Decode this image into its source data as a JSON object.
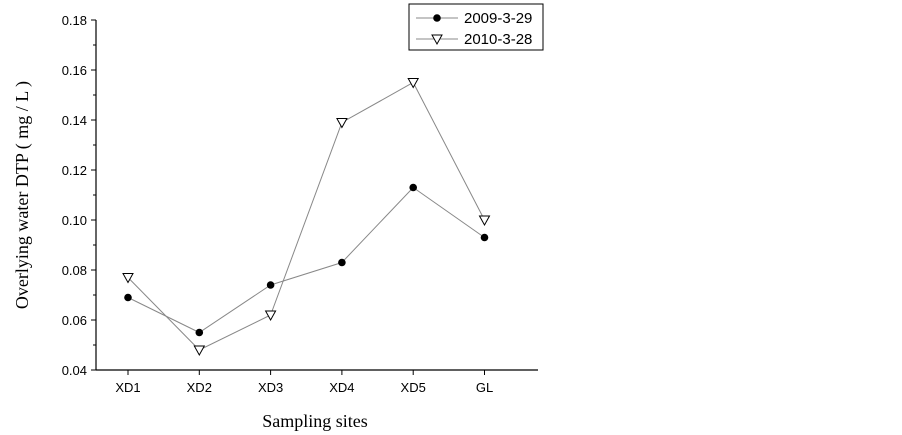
{
  "chart_data": {
    "type": "line",
    "title": "",
    "xlabel": "Sampling sites",
    "ylabel": "Overlying water DTP ( mg / L )",
    "categories": [
      "XD1",
      "XD2",
      "XD3",
      "XD4",
      "XD5",
      "GL"
    ],
    "ylim": [
      0.04,
      0.18
    ],
    "yticks": [
      "0.04",
      "0.06",
      "0.08",
      "0.10",
      "0.12",
      "0.14",
      "0.16",
      "0.18"
    ],
    "grid": false,
    "legend_position": "top-right",
    "series": [
      {
        "name": "2009-3-29",
        "marker": "filled-circle",
        "values": [
          0.069,
          0.055,
          0.074,
          0.083,
          0.113,
          0.093
        ]
      },
      {
        "name": "2010-3-28",
        "marker": "open-triangle-down",
        "values": [
          0.077,
          0.048,
          0.062,
          0.139,
          0.155,
          0.1
        ]
      }
    ],
    "colors": {
      "line": "#888888",
      "marker": "#000000",
      "axis": "#000000"
    }
  }
}
